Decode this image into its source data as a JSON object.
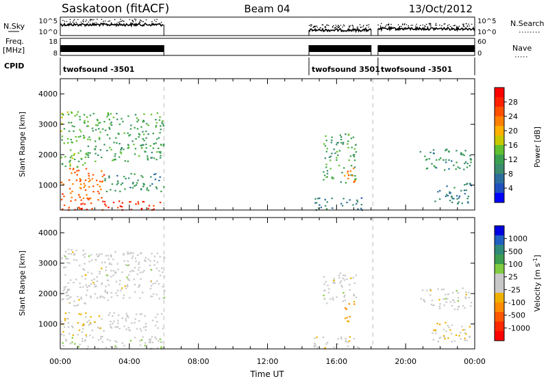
{
  "header": {
    "station": "Saskatoon (fitACF)",
    "beam": "Beam 04",
    "date": "13/Oct/2012"
  },
  "strip_labels": {
    "nsky": "N.Sky",
    "nsky_ticks": [
      "10^5",
      "10^0"
    ],
    "freq_top": "Freq.",
    "freq_unit": "[MHz]",
    "freq_ticks": [
      "18",
      "8"
    ],
    "cpid": "CPID",
    "nsearch": "N.Search",
    "nsearch_ticks": [
      "10^5",
      "10^0"
    ],
    "nave": "Nave",
    "nave_ticks": [
      "60",
      "0"
    ]
  },
  "cpid_segments": [
    {
      "label": "twofsound -3501",
      "start_h": 0,
      "end_h": 6
    },
    {
      "label": "twofsound 3501",
      "start_h": 14.4,
      "end_h": 18.1
    },
    {
      "label": "twofsound -3501",
      "start_h": 18.4,
      "end_h": 24
    }
  ],
  "data_windows_hours": [
    [
      0,
      6
    ],
    [
      14.4,
      18.0
    ],
    [
      18.4,
      24
    ]
  ],
  "colors": {
    "power": [
      "#0000ff",
      "#2050c0",
      "#2e6e9e",
      "#3c8c6e",
      "#3aa050",
      "#60c030",
      "#c8c800",
      "#ffb000",
      "#ff8000",
      "#ff5000",
      "#ff2000",
      "#ff0000"
    ],
    "velocity": [
      "#0000e0",
      "#2060c0",
      "#2e8a7a",
      "#3c9e50",
      "#80cc40",
      "#c8c8c8",
      "#c8c8c8",
      "#f0b000",
      "#ff8c00",
      "#ff5800",
      "#ff2800",
      "#ff0000"
    ]
  },
  "chart_data": [
    {
      "type": "heatmap",
      "title": "Power",
      "xlabel": "",
      "ylabel": "Slant Range [km]",
      "colorbar_label": "Power [dB]",
      "colorbar_ticks": [
        "28",
        "24",
        "20",
        "16",
        "12",
        "8",
        "4"
      ],
      "colorbar_range": [
        0,
        32
      ],
      "ylim": [
        180,
        4500
      ],
      "yticks": [
        "4000",
        "3000",
        "2000",
        "1000"
      ],
      "xlim": [
        0,
        24
      ],
      "grid": false,
      "bands": [
        {
          "t0": 0.0,
          "t1": 6.0,
          "r0": 200,
          "r1": 500,
          "v": 28
        },
        {
          "t0": 0.0,
          "t1": 2.5,
          "r0": 500,
          "r1": 1600,
          "v": 24
        },
        {
          "t0": 0.0,
          "t1": 1.5,
          "r0": 1600,
          "r1": 3500,
          "v": 14
        },
        {
          "t0": 1.5,
          "t1": 6.0,
          "r0": 1800,
          "r1": 3400,
          "v": 12
        },
        {
          "t0": 2.5,
          "t1": 6.0,
          "r0": 800,
          "r1": 1400,
          "v": 10
        },
        {
          "t0": 15.2,
          "t1": 17.1,
          "r0": 1100,
          "r1": 2700,
          "v": 12
        },
        {
          "t0": 16.4,
          "t1": 17.1,
          "r0": 1100,
          "r1": 1700,
          "v": 22
        },
        {
          "t0": 14.6,
          "t1": 17.5,
          "r0": 200,
          "r1": 600,
          "v": 8
        },
        {
          "t0": 20.8,
          "t1": 23.8,
          "r0": 1500,
          "r1": 2200,
          "v": 10
        },
        {
          "t0": 21.5,
          "t1": 23.8,
          "r0": 400,
          "r1": 1100,
          "v": 8
        }
      ]
    },
    {
      "type": "heatmap",
      "title": "Velocity",
      "xlabel": "Time UT",
      "ylabel": "Slant Range [km]",
      "colorbar_label": "Velocity [m s^-1]",
      "colorbar_ticks": [
        "1000",
        "500",
        "100",
        "25",
        "-25",
        "-100",
        "-500",
        "-1000"
      ],
      "colorbar_range": [
        -1200,
        1200
      ],
      "ylim": [
        180,
        4500
      ],
      "yticks": [
        "4000",
        "3000",
        "2000",
        "1000"
      ],
      "xlim": [
        0,
        24
      ],
      "xticks": [
        "00:00",
        "04:00",
        "08:00",
        "12:00",
        "16:00",
        "20:00",
        "00:00"
      ],
      "grid": false,
      "bands": [
        {
          "t0": 0.0,
          "t1": 6.0,
          "r0": 200,
          "r1": 600,
          "v": 50
        },
        {
          "t0": 0.0,
          "t1": 2.5,
          "r0": 600,
          "r1": 1400,
          "v": -150
        },
        {
          "t0": 0.0,
          "t1": 1.5,
          "r0": 1600,
          "r1": 3500,
          "v": 0
        },
        {
          "t0": 1.5,
          "t1": 6.0,
          "r0": 1800,
          "r1": 3400,
          "v": 0
        },
        {
          "t0": 2.5,
          "t1": 6.0,
          "r0": 800,
          "r1": 1400,
          "v": 0
        },
        {
          "t0": 15.2,
          "t1": 17.1,
          "r0": 1700,
          "r1": 2700,
          "v": 0
        },
        {
          "t0": 16.4,
          "t1": 17.1,
          "r0": 1100,
          "r1": 1700,
          "v": -400
        },
        {
          "t0": 14.6,
          "t1": 17.5,
          "r0": 200,
          "r1": 600,
          "v": -60
        },
        {
          "t0": 20.8,
          "t1": 23.8,
          "r0": 1500,
          "r1": 2200,
          "v": 0
        },
        {
          "t0": 21.5,
          "t1": 23.8,
          "r0": 400,
          "r1": 1100,
          "v": -120
        }
      ]
    }
  ]
}
